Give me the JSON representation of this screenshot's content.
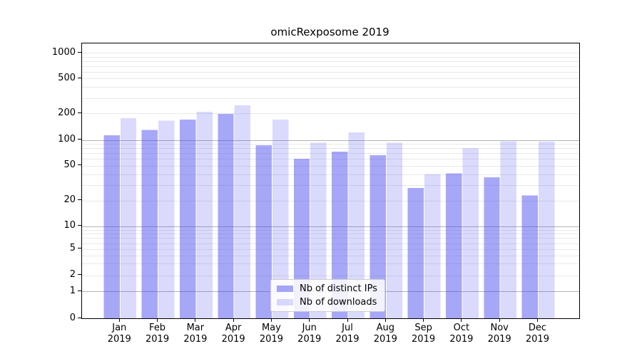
{
  "chart_data": {
    "type": "bar",
    "title": "omicRexposome 2019",
    "categories": [
      "Jan 2019",
      "Feb 2019",
      "Mar 2019",
      "Apr 2019",
      "May 2019",
      "Jun 2019",
      "Jul 2019",
      "Aug 2019",
      "Sep 2019",
      "Oct 2019",
      "Nov 2019",
      "Dec 2019"
    ],
    "series": [
      {
        "name": "Nb of distinct IPs",
        "color": "#3c3cf0",
        "alpha": 0.45,
        "values": [
          113,
          130,
          170,
          198,
          87,
          60,
          73,
          66,
          28,
          41,
          37,
          23
        ]
      },
      {
        "name": "Nb of downloads",
        "color": "#3c3cf0",
        "alpha": 0.19,
        "values": [
          176,
          165,
          208,
          248,
          170,
          93,
          122,
          93,
          40,
          80,
          96,
          95
        ]
      }
    ],
    "xlabel": "",
    "ylabel": "",
    "yscale": "symlog",
    "yticks": [
      0,
      1,
      2,
      5,
      10,
      20,
      50,
      100,
      200,
      500,
      1000
    ],
    "ylim": [
      0,
      1300
    ],
    "grid": true,
    "major_grid_color": "#b4b4b4",
    "minor_grid_color": "#e9e9e9",
    "legend_position": "lower center"
  }
}
